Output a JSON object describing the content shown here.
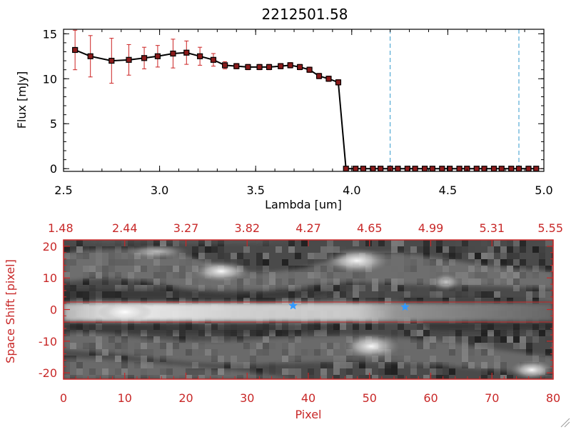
{
  "chart_data": [
    {
      "type": "line",
      "title": "2212501.58",
      "xlabel": "Lambda [um]",
      "ylabel": "Flux [mJy]",
      "xlim": [
        2.5,
        5.0
      ],
      "ylim": [
        -0.3,
        15.5
      ],
      "xticks": [
        "2.5",
        "3.0",
        "3.5",
        "4.0",
        "4.5",
        "5.0"
      ],
      "yticks": [
        "0",
        "5",
        "10",
        "15"
      ],
      "series": [
        {
          "x": [
            2.56,
            2.64,
            2.75,
            2.84,
            2.92,
            2.99,
            3.07,
            3.14,
            3.21,
            3.28,
            3.34,
            3.4,
            3.46,
            3.52,
            3.57,
            3.63,
            3.68,
            3.73,
            3.78,
            3.83,
            3.88,
            3.93,
            3.97,
            4.02,
            4.06,
            4.11,
            4.15,
            4.2,
            4.24,
            4.29,
            4.33,
            4.38,
            4.42,
            4.47,
            4.51,
            4.56,
            4.6,
            4.65,
            4.69,
            4.74,
            4.78,
            4.83,
            4.87,
            4.92,
            4.96
          ],
          "y": [
            13.2,
            12.5,
            12.0,
            12.1,
            12.3,
            12.5,
            12.8,
            12.9,
            12.5,
            12.1,
            11.5,
            11.4,
            11.3,
            11.3,
            11.3,
            11.4,
            11.5,
            11.3,
            11.0,
            10.3,
            10.0,
            9.6,
            0,
            0,
            0,
            0,
            0,
            0,
            0,
            0,
            0,
            0,
            0,
            0,
            0,
            0,
            0,
            0,
            0,
            0,
            0,
            0,
            0,
            0,
            0
          ],
          "yerr": [
            2.2,
            2.3,
            2.5,
            1.7,
            1.2,
            1.2,
            1.6,
            1.3,
            1.0,
            0.7,
            0.4,
            0.3,
            0.3,
            0.3,
            0.3,
            0.3,
            0.3,
            0.3,
            0.3,
            0.3,
            0.3,
            0.3,
            0.2,
            0.2,
            0.2,
            0.2,
            0.2,
            0.2,
            0.2,
            0.2,
            0.2,
            0.2,
            0.2,
            0.2,
            0.2,
            0.2,
            0.2,
            0.2,
            0.2,
            0.2,
            0.2,
            0.2,
            0.2,
            0.2,
            0.2
          ]
        }
      ],
      "vlines": [
        4.2,
        4.87
      ],
      "colors": {
        "line": "#000000",
        "marker": "#8b1a1a",
        "errorbar": "#cc2222",
        "vline": "#3399cc"
      }
    },
    {
      "type": "heatmap",
      "xlabel": "Pixel",
      "ylabel": "Space Shift [pixel]",
      "xlim": [
        0,
        80
      ],
      "ylim": [
        -22,
        22
      ],
      "xticks": [
        "0",
        "10",
        "20",
        "30",
        "40",
        "50",
        "60",
        "70",
        "80"
      ],
      "yticks": [
        "-20",
        "-10",
        "0",
        "10",
        "20"
      ],
      "top_axis_ticks": [
        "1.48",
        "2.44",
        "3.27",
        "3.82",
        "4.27",
        "4.65",
        "4.99",
        "5.31",
        "5.55"
      ],
      "extraction_band": [
        -3,
        3
      ],
      "stars": [
        [
          37.5,
          1.2
        ],
        [
          55.8,
          0.8
        ]
      ],
      "colors": {
        "axis": "#c82828",
        "star": "#3399ff"
      }
    }
  ]
}
